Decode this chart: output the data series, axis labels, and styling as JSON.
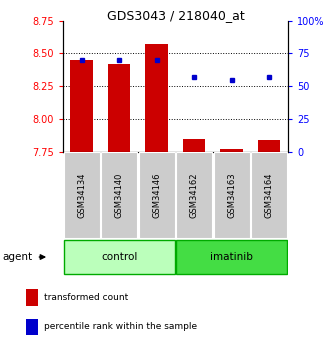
{
  "title": "GDS3043 / 218040_at",
  "samples": [
    "GSM34134",
    "GSM34140",
    "GSM34146",
    "GSM34162",
    "GSM34163",
    "GSM34164"
  ],
  "groups": [
    "control",
    "control",
    "control",
    "imatinib",
    "imatinib",
    "imatinib"
  ],
  "red_values": [
    8.45,
    8.42,
    8.57,
    7.85,
    7.77,
    7.84
  ],
  "blue_values": [
    70,
    70,
    70,
    57,
    55,
    57
  ],
  "ylim_left": [
    7.75,
    8.75
  ],
  "ylim_right": [
    0,
    100
  ],
  "yticks_left": [
    7.75,
    8.0,
    8.25,
    8.5,
    8.75
  ],
  "yticks_right": [
    0,
    25,
    50,
    75,
    100
  ],
  "ytick_right_labels": [
    "0",
    "25",
    "50",
    "75",
    "100%"
  ],
  "red_color": "#cc0000",
  "blue_color": "#0000cc",
  "bar_bottom": 7.75,
  "control_color": "#bbffbb",
  "imatinib_color": "#44dd44",
  "group_border_color": "#00aa00",
  "sample_bg_color": "#cccccc",
  "grid_color": "#000000",
  "agent_label": "agent",
  "legend_red": "transformed count",
  "legend_blue": "percentile rank within the sample",
  "title_fontsize": 9,
  "tick_fontsize": 7,
  "bar_fontsize": 6,
  "legend_fontsize": 6.5
}
